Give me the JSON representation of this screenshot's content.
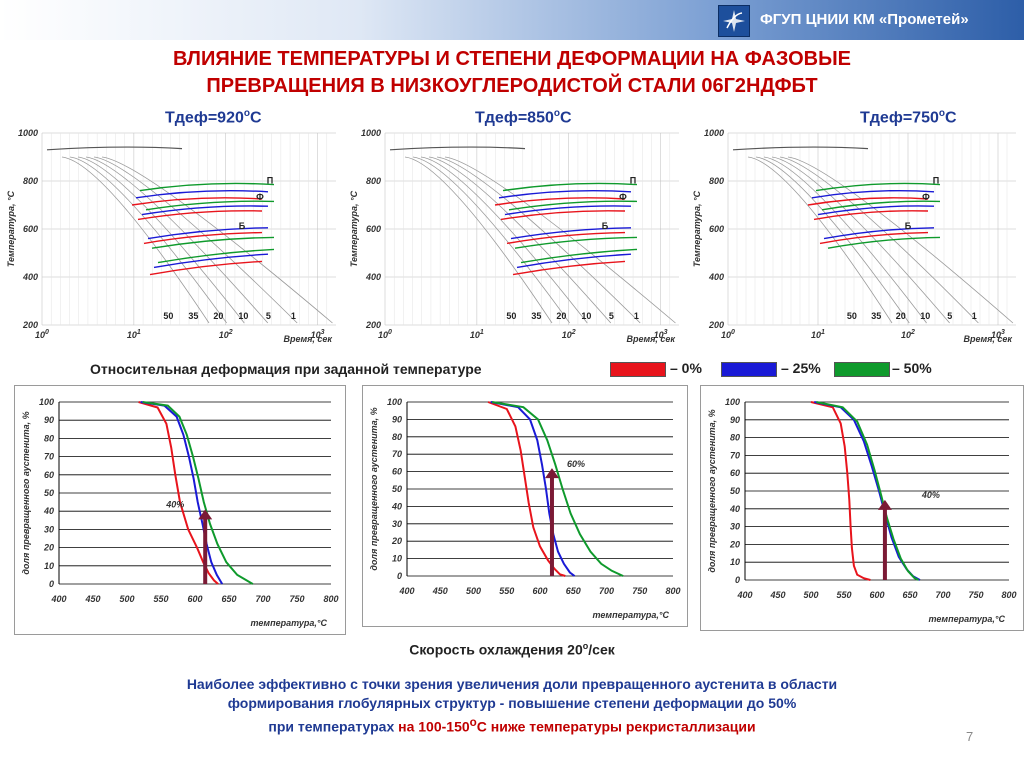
{
  "header": {
    "org": "ФГУП ЦНИИ КМ «Прометей»",
    "logo": "prometey-logo-icon"
  },
  "title": {
    "line1": "ВЛИЯНИЕ  ТЕМПЕРАТУРЫ И СТЕПЕНИ  ДЕФОРМАЦИИ  НА  ФАЗОВЫЕ",
    "line2": "ПРЕВРАЩЕНИЯ В НИЗКОУГЛЕРОДИСТОЙ   СТАЛИ 06Г2НДФБТ"
  },
  "diagrams": [
    {
      "label_main": "Тдеф=920",
      "label_deg": "о",
      "label_unit": "С"
    },
    {
      "label_main": "Тдеф=850",
      "label_deg": "о",
      "label_unit": "С"
    },
    {
      "label_main": "Тдеф=750",
      "label_deg": "о",
      "label_unit": "С"
    }
  ],
  "diagram_axes": {
    "ylabel": "Температура, °С",
    "xlabel": "Время, сек",
    "y_ticks": [
      "1000",
      "800",
      "600",
      "400",
      "200"
    ],
    "x_ticks": [
      "10",
      "10",
      "10",
      "10"
    ],
    "x_tick_powers": [
      "0",
      "1",
      "2",
      "3"
    ],
    "cooling_rates": [
      "50",
      "35",
      "20",
      "10",
      "5",
      "1"
    ],
    "phase_labels": [
      "П",
      "Ф",
      "Б"
    ]
  },
  "deformation_caption": "Относительная деформация при заданной температуре",
  "legend": [
    {
      "label": "– 0%",
      "color": "#e8141c"
    },
    {
      "label": "– 25%",
      "color": "#1a1ad6"
    },
    {
      "label": "– 50%",
      "color": "#0f9a2c"
    }
  ],
  "kinetic_axes": {
    "ylabel": "доля превращенного аустенита, %",
    "xlabel": "температура,°С",
    "y_ticks": [
      "0",
      "10",
      "20",
      "30",
      "40",
      "50",
      "60",
      "70",
      "80",
      "90",
      "100"
    ],
    "x_ticks": [
      "400",
      "450",
      "500",
      "550",
      "600",
      "650",
      "700",
      "750",
      "800"
    ]
  },
  "chart_data": [
    {
      "type": "line",
      "title": "",
      "xlabel": "температура,°С",
      "ylabel": "доля превращенного аустенита, %",
      "xlim": [
        400,
        800
      ],
      "ylim": [
        0,
        100
      ],
      "annotation": "40%",
      "arrow_x": 615,
      "arrow_top": 41,
      "series": [
        {
          "name": "0%",
          "color": "#e8141c",
          "x": [
            517,
            545,
            558,
            565,
            571,
            578,
            590,
            603,
            612,
            620,
            628,
            634
          ],
          "y": [
            100,
            97,
            88,
            75,
            60,
            45,
            30,
            20,
            12,
            6,
            2,
            0
          ]
        },
        {
          "name": "25%",
          "color": "#1a1ad6",
          "x": [
            520,
            555,
            573,
            583,
            591,
            598,
            604,
            611,
            617,
            624,
            632,
            640
          ],
          "y": [
            100,
            98,
            92,
            82,
            70,
            58,
            45,
            33,
            22,
            12,
            5,
            0
          ]
        },
        {
          "name": "50%",
          "color": "#0f9a2c",
          "x": [
            523,
            560,
            577,
            588,
            597,
            605,
            613,
            622,
            633,
            646,
            662,
            685
          ],
          "y": [
            100,
            98,
            92,
            82,
            70,
            58,
            45,
            33,
            22,
            12,
            5,
            0
          ]
        }
      ]
    },
    {
      "type": "line",
      "title": "",
      "xlabel": "температура,°С",
      "ylabel": "доля превращенного аустенита, %",
      "xlim": [
        400,
        800
      ],
      "ylim": [
        0,
        100
      ],
      "annotation": "60%",
      "arrow_x": 618,
      "arrow_top": 62,
      "series": [
        {
          "name": "0%",
          "color": "#e8141c",
          "x": [
            522,
            550,
            563,
            571,
            577,
            583,
            590,
            600,
            612,
            622,
            630,
            638
          ],
          "y": [
            100,
            96,
            86,
            72,
            57,
            42,
            28,
            17,
            9,
            4,
            1,
            0
          ]
        },
        {
          "name": "25%",
          "color": "#1a1ad6",
          "x": [
            526,
            567,
            585,
            596,
            603,
            609,
            614,
            620,
            627,
            636,
            645,
            652
          ],
          "y": [
            100,
            97,
            90,
            78,
            64,
            50,
            36,
            24,
            14,
            7,
            2,
            0
          ]
        },
        {
          "name": "50%",
          "color": "#0f9a2c",
          "x": [
            528,
            575,
            597,
            611,
            623,
            634,
            646,
            660,
            676,
            692,
            708,
            725
          ],
          "y": [
            100,
            97,
            90,
            78,
            64,
            50,
            36,
            24,
            14,
            7,
            3,
            0
          ]
        }
      ]
    },
    {
      "type": "line",
      "title": "",
      "xlabel": "температура,°С",
      "ylabel": "доля превращенного аустенита, %",
      "xlim": [
        400,
        800
      ],
      "ylim": [
        0,
        100
      ],
      "annotation": "40%",
      "arrow_x": 612,
      "arrow_top": 45,
      "series": [
        {
          "name": "0%",
          "color": "#e8141c",
          "x": [
            500,
            533,
            545,
            551,
            555,
            558,
            560,
            562,
            565,
            570,
            580,
            590
          ],
          "y": [
            100,
            97,
            88,
            75,
            60,
            45,
            30,
            18,
            8,
            3,
            1,
            0
          ]
        },
        {
          "name": "25%",
          "color": "#1a1ad6",
          "x": [
            505,
            545,
            565,
            580,
            592,
            603,
            613,
            622,
            633,
            645,
            655,
            665
          ],
          "y": [
            100,
            97,
            90,
            78,
            64,
            50,
            36,
            24,
            13,
            6,
            2,
            0
          ]
        },
        {
          "name": "50%",
          "color": "#0f9a2c",
          "x": [
            508,
            548,
            570,
            585,
            596,
            606,
            615,
            625,
            636,
            647,
            657,
            663
          ],
          "y": [
            100,
            97,
            89,
            76,
            62,
            48,
            35,
            23,
            12,
            5,
            1,
            0
          ]
        }
      ]
    }
  ],
  "cooling_caption": {
    "main": "Скорость охлаждения 20",
    "deg": "о",
    "unit": "/сек"
  },
  "conclusion": {
    "line1": "Наиболее эффективно с точки зрения увеличения доли превращенного аустенита в области",
    "line2": "формирования  глобулярных структур -  повышение степени деформации до 50%",
    "line3_a": "при температурах ",
    "line3_b": "на  100-150",
    "line3_deg": "о",
    "line3_c": "С ниже температуры рекристаллизации"
  },
  "page_number": "7"
}
